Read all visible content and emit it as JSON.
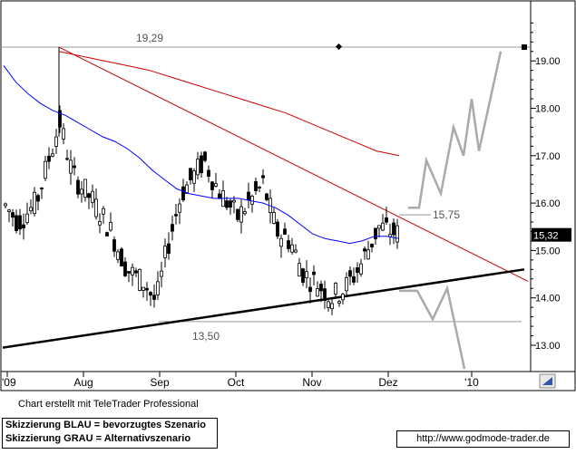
{
  "chart_data": {
    "type": "candlestick",
    "title": "",
    "x_tick_labels": [
      "'09",
      "Aug",
      "Sep",
      "Oct",
      "Nov",
      "Dez",
      "'10"
    ],
    "y_tick_labels": [
      "13.00",
      "14.00",
      "15.00",
      "16.00",
      "17.00",
      "18.00",
      "19.00"
    ],
    "ylim": [
      12.45,
      19.85
    ],
    "grid": false,
    "last_price_label": "15,32",
    "annotations": [
      {
        "text": "19,29",
        "value": 19.29
      },
      {
        "text": "15,75",
        "value": 15.75
      },
      {
        "text": "13,50",
        "value": 13.5
      }
    ],
    "series": [
      {
        "kind": "moving-average",
        "color": "#0000ff",
        "values": [
          18.9,
          18.55,
          18.3,
          18.1,
          17.95,
          17.85,
          17.7,
          17.55,
          17.4,
          17.3,
          17.15,
          16.95,
          16.7,
          16.5,
          16.3,
          16.2,
          16.15,
          16.1,
          16.1,
          16.1,
          16.05,
          16.0,
          15.9,
          15.75,
          15.55,
          15.35,
          15.25,
          15.2,
          15.15,
          15.2,
          15.3,
          15.3,
          15.25
        ]
      },
      {
        "kind": "moving-average",
        "color": "#cc0000",
        "values": [
          19.2,
          19.1,
          19.0,
          18.9,
          18.8,
          18.65,
          18.5,
          18.35,
          18.2,
          18.05,
          17.9,
          17.7,
          17.5,
          17.3,
          17.1,
          17.0
        ]
      },
      {
        "kind": "trendline",
        "color": "#cc0000",
        "from": 19.29,
        "to": 14.35
      },
      {
        "kind": "trendline",
        "color": "#000000",
        "from": 12.95,
        "to": 14.6
      },
      {
        "kind": "scenario",
        "name": "bevorzugtes Szenario",
        "color": "#aaaaaa",
        "values": [
          15.9,
          15.9,
          16.9,
          16.2,
          17.6,
          17.0,
          18.2,
          17.1,
          19.2
        ]
      },
      {
        "kind": "scenario",
        "name": "Alternativszenario",
        "color": "#aaaaaa",
        "values": [
          14.15,
          14.15,
          13.55,
          14.2,
          12.5
        ]
      }
    ]
  },
  "footer": {
    "credit": "Chart erstellt mit TeleTrader Professional",
    "legend_blue": "Skizzierung BLAU = bevorzugtes Szenario",
    "legend_gray": "Skizzierung GRAU = Alternativszenario",
    "url": "http://www.godmode-trader.de"
  },
  "colors": {
    "background": "#ffffff",
    "axis_panel": "#ffffff",
    "price_tag": "#000000",
    "ma_blue": "#0000ff",
    "ma_red": "#cc0000",
    "scenario": "#aaaaaa"
  }
}
